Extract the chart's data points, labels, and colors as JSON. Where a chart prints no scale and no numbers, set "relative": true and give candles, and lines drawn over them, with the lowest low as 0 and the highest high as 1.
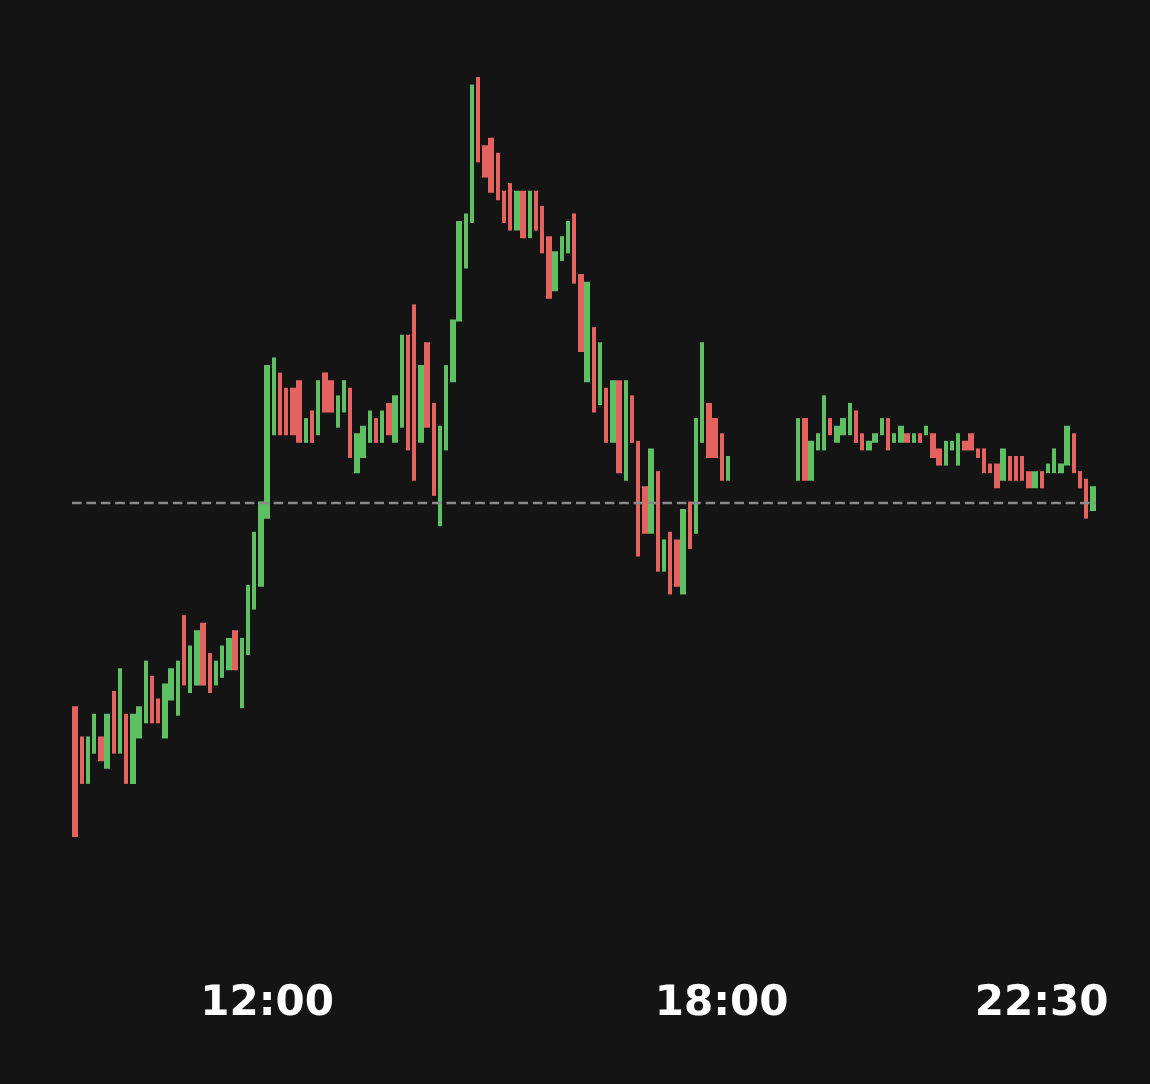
{
  "chart_data": {
    "type": "candlestick",
    "relative": true,
    "grid": false,
    "colors": [
      "#e5635e",
      "#e5635e",
      "#5fbf63",
      "#5fbf63",
      "#e5635e",
      "#5fbf63",
      "#e5635e",
      "#5fbf63",
      "#e5635e",
      "#5fbf63",
      "#5fbf63",
      "#5fbf63",
      "#e5635e",
      "#e5635e",
      "#5fbf63",
      "#5fbf63",
      "#5fbf63",
      "#e5635e",
      "#5fbf63",
      "#5fbf63",
      "#e5635e",
      "#e5635e",
      "#5fbf63",
      "#5fbf63",
      "#5fbf63",
      "#e5635e",
      "#5fbf63",
      "#5fbf63",
      "#5fbf63",
      "#5fbf63",
      "#5fbf63",
      "#5fbf63",
      "#e5635e",
      "#e5635e",
      "#e5635e",
      "#e5635e",
      "#5fbf63",
      "#e5635e",
      "#5fbf63",
      "#e5635e",
      "#e5635e",
      "#5fbf63",
      "#5fbf63",
      "#e5635e",
      "#5fbf63",
      "#5fbf63",
      "#5fbf63",
      "#e5635e",
      "#5fbf63",
      "#e5635e",
      "#5fbf63",
      "#5fbf63",
      "#e5635e",
      "#e5635e",
      "#5fbf63",
      "#e5635e",
      "#e5635e",
      "#5fbf63",
      "#5fbf63",
      "#5fbf63",
      "#5fbf63",
      "#5fbf63",
      "#5fbf63",
      "#e5635e",
      "#e5635e",
      "#e5635e",
      "#e5635e",
      "#e5635e",
      "#e5635e",
      "#5fbf63",
      "#e5635e",
      "#5fbf63",
      "#e5635e",
      "#e5635e",
      "#e5635e",
      "#5fbf63",
      "#5fbf63",
      "#5fbf63",
      "#e5635e",
      "#e5635e",
      "#5fbf63",
      "#e5635e",
      "#5fbf63",
      "#e5635e",
      "#5fbf63",
      "#e5635e",
      "#5fbf63",
      "#e5635e",
      "#e5635e",
      "#e5635e",
      "#5fbf63",
      "#e5635e",
      "#5fbf63",
      "#e5635e",
      "#e5635e",
      "#5fbf63",
      "#e5635e",
      "#5fbf63",
      "#5fbf63",
      "#e5635e",
      "#e5635e",
      "#e5635e",
      "#5fbf63",
      null,
      null,
      null,
      null,
      null,
      null,
      null,
      null,
      null,
      null,
      "#5fbf63",
      "#e5635e",
      "#5fbf63",
      "#5fbf63",
      "#5fbf63",
      "#e5635e",
      "#5fbf63",
      "#5fbf63",
      "#5fbf63",
      "#e5635e",
      "#e5635e",
      "#5fbf63",
      "#5fbf63",
      "#5fbf63",
      "#e5635e",
      "#5fbf63",
      "#5fbf63",
      "#e5635e",
      "#5fbf63",
      "#e5635e",
      "#5fbf63",
      "#e5635e",
      "#e5635e",
      "#5fbf63",
      "#5fbf63",
      "#5fbf63",
      "#e5635e",
      "#e5635e",
      "#e5635e",
      "#e5635e",
      "#e5635e",
      "#e5635e",
      "#5fbf63",
      "#e5635e",
      "#e5635e",
      "#e5635e",
      "#e5635e",
      "#5fbf63",
      "#e5635e",
      "#5fbf63",
      "#5fbf63",
      "#5fbf63",
      "#5fbf63",
      "#e5635e",
      "#e5635e",
      "#e5635e",
      "#5fbf63"
    ],
    "categories": [
      null,
      null,
      null,
      null,
      null,
      null,
      null,
      null,
      null,
      null,
      null,
      null,
      null,
      null,
      null,
      null,
      null,
      null,
      null,
      null,
      null,
      null,
      null,
      null,
      null,
      null,
      null,
      null,
      null,
      null,
      "12:00",
      null,
      null,
      null,
      null,
      null,
      null,
      null,
      null,
      null,
      null,
      null,
      null,
      null,
      null,
      null,
      null,
      null,
      null,
      null,
      null,
      null,
      null,
      null,
      null,
      null,
      null,
      null,
      null,
      null,
      null,
      null,
      null,
      null,
      null,
      null,
      null,
      null,
      null,
      null,
      null,
      null,
      null,
      null,
      null,
      null,
      null,
      null,
      null,
      null,
      null,
      null,
      null,
      null,
      null,
      null,
      null,
      null,
      null,
      null,
      null,
      null,
      null,
      null,
      null,
      null,
      null,
      null,
      null,
      null,
      null,
      "18:00",
      null,
      null,
      null,
      null,
      null,
      null,
      null,
      null,
      null,
      null,
      null,
      null,
      null,
      null,
      null,
      null,
      null,
      null,
      null,
      null,
      null,
      null,
      null,
      null,
      null,
      null,
      null,
      null,
      null,
      null,
      null,
      null,
      null,
      null,
      null,
      null,
      null,
      null,
      null,
      null,
      null,
      null,
      null,
      null,
      null,
      null,
      null,
      null,
      null,
      "22:30",
      null,
      null,
      null,
      null,
      null,
      null,
      null,
      null
    ],
    "ohlc": [
      [
        0.17,
        0.17,
        0,
        0
      ],
      [
        0.13,
        0.13,
        0.07,
        0.07
      ],
      [
        0.07,
        0.13,
        0.07,
        0.13
      ],
      [
        0.11,
        0.16,
        0.11,
        0.16
      ],
      [
        0.13,
        0.13,
        0.1,
        0.1
      ],
      [
        0.09,
        0.16,
        0.09,
        0.16
      ],
      [
        0.19,
        0.19,
        0.11,
        0.11
      ],
      [
        0.11,
        0.22,
        0.11,
        0.22
      ],
      [
        0.16,
        0.16,
        0.07,
        0.07
      ],
      [
        0.07,
        0.16,
        0.07,
        0.16
      ],
      [
        0.13,
        0.17,
        0.13,
        0.17
      ],
      [
        0.15,
        0.23,
        0.15,
        0.23
      ],
      [
        0.21,
        0.21,
        0.15,
        0.15
      ],
      [
        0.18,
        0.18,
        0.15,
        0.15
      ],
      [
        0.13,
        0.2,
        0.13,
        0.2
      ],
      [
        0.18,
        0.22,
        0.18,
        0.22
      ],
      [
        0.16,
        0.23,
        0.16,
        0.23
      ],
      [
        0.29,
        0.29,
        0.2,
        0.2
      ],
      [
        0.19,
        0.25,
        0.19,
        0.25
      ],
      [
        0.2,
        0.27,
        0.2,
        0.27
      ],
      [
        0.28,
        0.28,
        0.2,
        0.2
      ],
      [
        0.24,
        0.24,
        0.19,
        0.19
      ],
      [
        0.2,
        0.23,
        0.2,
        0.23
      ],
      [
        0.21,
        0.25,
        0.21,
        0.25
      ],
      [
        0.22,
        0.26,
        0.22,
        0.26
      ],
      [
        0.27,
        0.27,
        0.22,
        0.22
      ],
      [
        0.17,
        0.26,
        0.17,
        0.26
      ],
      [
        0.24,
        0.33,
        0.24,
        0.33
      ],
      [
        0.3,
        0.4,
        0.3,
        0.4
      ],
      [
        0.33,
        0.44,
        0.33,
        0.44
      ],
      [
        0.42,
        0.62,
        0.42,
        0.62
      ],
      [
        0.53,
        0.63,
        0.53,
        0.63
      ],
      [
        0.61,
        0.61,
        0.53,
        0.53
      ],
      [
        0.59,
        0.59,
        0.53,
        0.53
      ],
      [
        0.59,
        0.59,
        0.53,
        0.53
      ],
      [
        0.6,
        0.6,
        0.52,
        0.52
      ],
      [
        0.52,
        0.55,
        0.52,
        0.55
      ],
      [
        0.56,
        0.56,
        0.52,
        0.52
      ],
      [
        0.53,
        0.6,
        0.53,
        0.6
      ],
      [
        0.61,
        0.61,
        0.56,
        0.56
      ],
      [
        0.6,
        0.6,
        0.56,
        0.56
      ],
      [
        0.54,
        0.58,
        0.54,
        0.58
      ],
      [
        0.56,
        0.6,
        0.56,
        0.6
      ],
      [
        0.59,
        0.59,
        0.5,
        0.5
      ],
      [
        0.48,
        0.53,
        0.48,
        0.53
      ],
      [
        0.5,
        0.54,
        0.5,
        0.54
      ],
      [
        0.52,
        0.56,
        0.52,
        0.56
      ],
      [
        0.55,
        0.55,
        0.52,
        0.52
      ],
      [
        0.52,
        0.56,
        0.52,
        0.56
      ],
      [
        0.57,
        0.57,
        0.53,
        0.53
      ],
      [
        0.52,
        0.58,
        0.52,
        0.58
      ],
      [
        0.54,
        0.66,
        0.54,
        0.66
      ],
      [
        0.66,
        0.66,
        0.51,
        0.51
      ],
      [
        0.7,
        0.7,
        0.47,
        0.47
      ],
      [
        0.52,
        0.62,
        0.52,
        0.62
      ],
      [
        0.65,
        0.65,
        0.54,
        0.54
      ],
      [
        0.57,
        0.57,
        0.45,
        0.45
      ],
      [
        0.41,
        0.54,
        0.41,
        0.54
      ],
      [
        0.51,
        0.62,
        0.51,
        0.62
      ],
      [
        0.6,
        0.68,
        0.6,
        0.68
      ],
      [
        0.68,
        0.81,
        0.68,
        0.81
      ],
      [
        0.75,
        0.82,
        0.75,
        0.82
      ],
      [
        0.81,
        0.99,
        0.81,
        0.99
      ],
      [
        1,
        1,
        0.89,
        0.89
      ],
      [
        0.91,
        0.91,
        0.87,
        0.87
      ],
      [
        0.92,
        0.92,
        0.85,
        0.85
      ],
      [
        0.9,
        0.9,
        0.84,
        0.84
      ],
      [
        0.85,
        0.85,
        0.81,
        0.81
      ],
      [
        0.86,
        0.86,
        0.8,
        0.8
      ],
      [
        0.8,
        0.85,
        0.8,
        0.85
      ],
      [
        0.85,
        0.85,
        0.79,
        0.79
      ],
      [
        0.79,
        0.85,
        0.79,
        0.85
      ],
      [
        0.85,
        0.85,
        0.8,
        0.8
      ],
      [
        0.83,
        0.83,
        0.77,
        0.77
      ],
      [
        0.79,
        0.79,
        0.71,
        0.71
      ],
      [
        0.72,
        0.77,
        0.72,
        0.77
      ],
      [
        0.76,
        0.79,
        0.76,
        0.79
      ],
      [
        0.77,
        0.81,
        0.77,
        0.81
      ],
      [
        0.82,
        0.82,
        0.73,
        0.73
      ],
      [
        0.74,
        0.74,
        0.64,
        0.64
      ],
      [
        0.6,
        0.73,
        0.6,
        0.73
      ],
      [
        0.67,
        0.67,
        0.56,
        0.56
      ],
      [
        0.57,
        0.65,
        0.57,
        0.65
      ],
      [
        0.59,
        0.59,
        0.52,
        0.52
      ],
      [
        0.52,
        0.6,
        0.52,
        0.6
      ],
      [
        0.6,
        0.6,
        0.48,
        0.48
      ],
      [
        0.47,
        0.6,
        0.47,
        0.6
      ],
      [
        0.58,
        0.58,
        0.52,
        0.52
      ],
      [
        0.52,
        0.52,
        0.37,
        0.37
      ],
      [
        0.46,
        0.46,
        0.4,
        0.4
      ],
      [
        0.4,
        0.51,
        0.4,
        0.51
      ],
      [
        0.48,
        0.48,
        0.35,
        0.35
      ],
      [
        0.35,
        0.39,
        0.35,
        0.39
      ],
      [
        0.4,
        0.4,
        0.32,
        0.32
      ],
      [
        0.39,
        0.39,
        0.33,
        0.33
      ],
      [
        0.32,
        0.43,
        0.32,
        0.43
      ],
      [
        0.44,
        0.44,
        0.38,
        0.38
      ],
      [
        0.4,
        0.55,
        0.4,
        0.55
      ],
      [
        0.52,
        0.65,
        0.52,
        0.65
      ],
      [
        0.57,
        0.57,
        0.5,
        0.5
      ],
      [
        0.55,
        0.55,
        0.5,
        0.5
      ],
      [
        0.53,
        0.53,
        0.47,
        0.47
      ],
      [
        0.47,
        0.5,
        0.47,
        0.5
      ],
      null,
      null,
      null,
      null,
      null,
      null,
      null,
      null,
      null,
      null,
      [
        0.47,
        0.55,
        0.47,
        0.55
      ],
      [
        0.55,
        0.55,
        0.47,
        0.47
      ],
      [
        0.47,
        0.52,
        0.47,
        0.52
      ],
      [
        0.51,
        0.53,
        0.51,
        0.53
      ],
      [
        0.51,
        0.58,
        0.51,
        0.58
      ],
      [
        0.55,
        0.55,
        0.53,
        0.53
      ],
      [
        0.52,
        0.54,
        0.52,
        0.54
      ],
      [
        0.53,
        0.55,
        0.53,
        0.55
      ],
      [
        0.53,
        0.57,
        0.53,
        0.57
      ],
      [
        0.56,
        0.56,
        0.52,
        0.52
      ],
      [
        0.53,
        0.53,
        0.51,
        0.51
      ],
      [
        0.51,
        0.52,
        0.51,
        0.52
      ],
      [
        0.52,
        0.53,
        0.52,
        0.53
      ],
      [
        0.53,
        0.55,
        0.53,
        0.55
      ],
      [
        0.55,
        0.55,
        0.51,
        0.51
      ],
      [
        0.52,
        0.53,
        0.52,
        0.53
      ],
      [
        0.52,
        0.54,
        0.52,
        0.54
      ],
      [
        0.53,
        0.53,
        0.52,
        0.52
      ],
      [
        0.52,
        0.53,
        0.52,
        0.53
      ],
      [
        0.53,
        0.53,
        0.52,
        0.52
      ],
      [
        0.53,
        0.54,
        0.53,
        0.54
      ],
      [
        0.53,
        0.53,
        0.5,
        0.5
      ],
      [
        0.51,
        0.51,
        0.49,
        0.49
      ],
      [
        0.49,
        0.52,
        0.49,
        0.52
      ],
      [
        0.51,
        0.52,
        0.51,
        0.52
      ],
      [
        0.49,
        0.53,
        0.49,
        0.53
      ],
      [
        0.52,
        0.52,
        0.51,
        0.51
      ],
      [
        0.53,
        0.53,
        0.51,
        0.51
      ],
      [
        0.51,
        0.51,
        0.5,
        0.5
      ],
      [
        0.51,
        0.51,
        0.48,
        0.48
      ],
      [
        0.49,
        0.49,
        0.48,
        0.48
      ],
      [
        0.49,
        0.49,
        0.46,
        0.46
      ],
      [
        0.47,
        0.51,
        0.47,
        0.51
      ],
      [
        0.5,
        0.5,
        0.47,
        0.47
      ],
      [
        0.5,
        0.5,
        0.47,
        0.47
      ],
      [
        0.5,
        0.5,
        0.47,
        0.47
      ],
      [
        0.48,
        0.48,
        0.46,
        0.46
      ],
      [
        0.46,
        0.48,
        0.46,
        0.48
      ],
      [
        0.48,
        0.48,
        0.46,
        0.46
      ],
      [
        0.48,
        0.49,
        0.48,
        0.49
      ],
      [
        0.48,
        0.51,
        0.48,
        0.51
      ],
      [
        0.48,
        0.49,
        0.48,
        0.49
      ],
      [
        0.49,
        0.54,
        0.49,
        0.54
      ],
      [
        0.53,
        0.53,
        0.48,
        0.48
      ],
      [
        0.48,
        0.48,
        0.46,
        0.46
      ],
      [
        0.47,
        0.47,
        0.42,
        0.42
      ],
      [
        0.43,
        0.46,
        0.43,
        0.46
      ]
    ],
    "ref_lines": [
      {
        "axis": "y",
        "value": 0.44,
        "color": "#8a8a8a",
        "line_style": "dashed"
      }
    ]
  }
}
